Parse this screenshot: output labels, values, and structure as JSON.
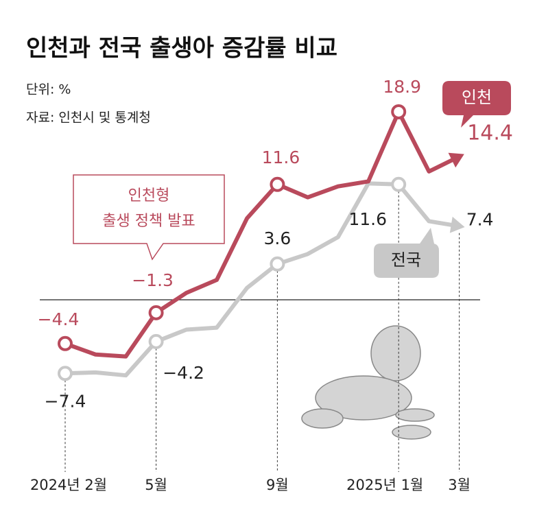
{
  "chart_data": {
    "type": "line",
    "title": "인천과 전국 출생아 증감률 비교",
    "subtitle": "단위: %",
    "source": "자료: 인천시 및 통계청",
    "annotation": [
      "인천형",
      "출생 정책 발표"
    ],
    "categories": [
      "2024년 2월",
      null,
      null,
      "5월",
      null,
      null,
      null,
      "9월",
      null,
      null,
      null,
      "2025년 1월",
      null,
      "3월"
    ],
    "series": [
      {
        "name": "인천",
        "color": "#b94a5c",
        "values": [
          -4.4,
          -5.5,
          -5.7,
          -1.3,
          0.7,
          2.0,
          8.2,
          11.6,
          10.3,
          11.4,
          11.9,
          18.9,
          12.9,
          14.4
        ],
        "value_labels": [
          "−4.4",
          null,
          null,
          "−1.3",
          null,
          null,
          null,
          "11.6",
          null,
          null,
          null,
          "18.9",
          null,
          "14.4"
        ]
      },
      {
        "name": "전국",
        "color": "#c8c8c8",
        "values": [
          -7.4,
          -7.3,
          -7.6,
          -4.2,
          -3.0,
          -2.8,
          1.2,
          3.6,
          4.6,
          6.3,
          11.7,
          11.6,
          7.9,
          7.4
        ],
        "value_labels": [
          "−7.4",
          null,
          null,
          "−4.2",
          null,
          null,
          null,
          "3.6",
          null,
          null,
          null,
          "11.6",
          null,
          "7.4"
        ]
      }
    ]
  }
}
